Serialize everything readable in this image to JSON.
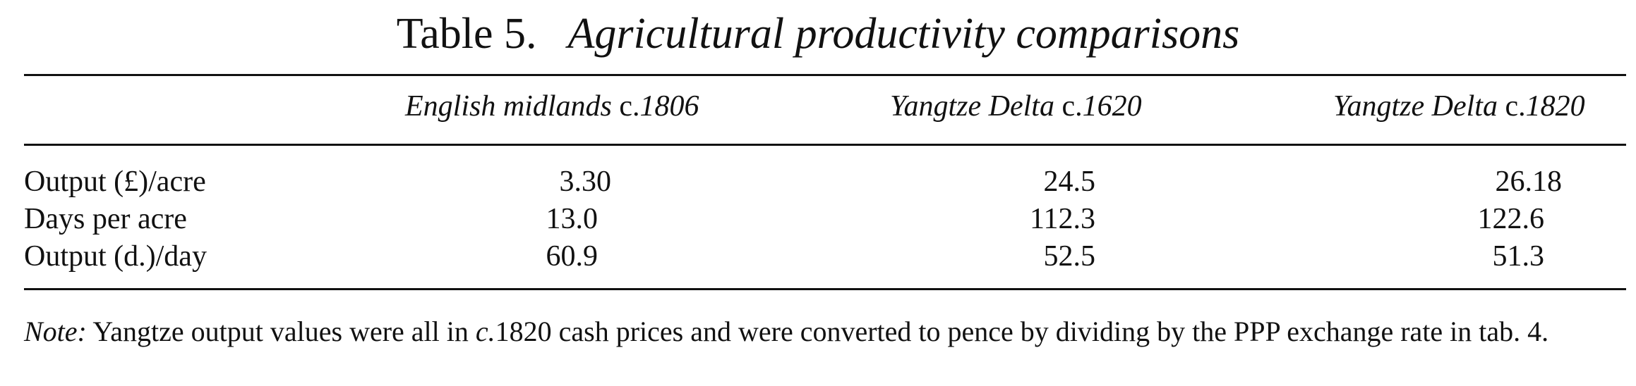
{
  "caption": {
    "label": "Table 5.",
    "title": "Agricultural productivity comparisons"
  },
  "columns": [
    {
      "place": "English midlands",
      "circa": "c.",
      "year": "1806"
    },
    {
      "place": "Yangtze Delta",
      "circa": "c.",
      "year": "1620"
    },
    {
      "place": "Yangtze Delta",
      "circa": "c.",
      "year": "1820"
    }
  ],
  "rows": [
    {
      "label": "Output (£)/acre",
      "values": [
        "3.30",
        "24.5",
        "26.18"
      ]
    },
    {
      "label": "Days per acre",
      "values": [
        "13.0",
        "112.3",
        "122.6"
      ]
    },
    {
      "label": "Output (d.)/day",
      "values": [
        "60.9",
        "52.5",
        "51.3"
      ]
    }
  ],
  "note": {
    "label": "Note:",
    "text_before": "Yangtze output values were all in",
    "circa": "c.",
    "text_after": "1820 cash prices and were converted to pence by dividing by the PPP exchange rate in tab. 4."
  }
}
